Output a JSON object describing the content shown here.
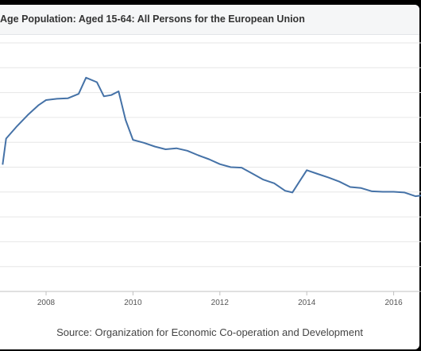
{
  "chart_data": {
    "type": "line",
    "title": "Age Population: Aged 15-64: All Persons for the European Union",
    "source": "Source: Organization for Economic Co-operation and Development",
    "x_tick_labels": [
      "2008",
      "2010",
      "2012",
      "2014",
      "2016"
    ],
    "xlim": [
      2007.0,
      2016.7
    ],
    "ylim": [
      0,
      10
    ],
    "grid": true,
    "line_color": "#4572a7",
    "series": [
      {
        "x": [
          2007.0,
          2007.08,
          2007.33,
          2007.58,
          2007.83,
          2008.0,
          2008.25,
          2008.5,
          2008.75,
          2008.92,
          2009.17,
          2009.33,
          2009.5,
          2009.67,
          2009.83,
          2010.0,
          2010.25,
          2010.5,
          2010.75,
          2011.0,
          2011.25,
          2011.5,
          2011.75,
          2012.0,
          2012.25,
          2012.5,
          2012.75,
          2013.0,
          2013.25,
          2013.5,
          2013.67,
          2013.83,
          2014.0,
          2014.25,
          2014.5,
          2014.75,
          2015.0,
          2015.25,
          2015.5,
          2015.75,
          2016.0,
          2016.25,
          2016.5,
          2016.67
        ],
        "y": [
          5.1,
          6.15,
          6.65,
          7.1,
          7.5,
          7.7,
          7.75,
          7.77,
          7.95,
          8.6,
          8.42,
          7.85,
          7.9,
          8.05,
          6.9,
          6.1,
          5.98,
          5.83,
          5.72,
          5.76,
          5.66,
          5.48,
          5.32,
          5.12,
          5.0,
          4.98,
          4.74,
          4.5,
          4.35,
          4.05,
          3.98,
          4.42,
          4.88,
          4.73,
          4.58,
          4.42,
          4.2,
          4.16,
          4.03,
          4.01,
          4.01,
          3.98,
          3.83,
          3.87
        ]
      }
    ]
  }
}
